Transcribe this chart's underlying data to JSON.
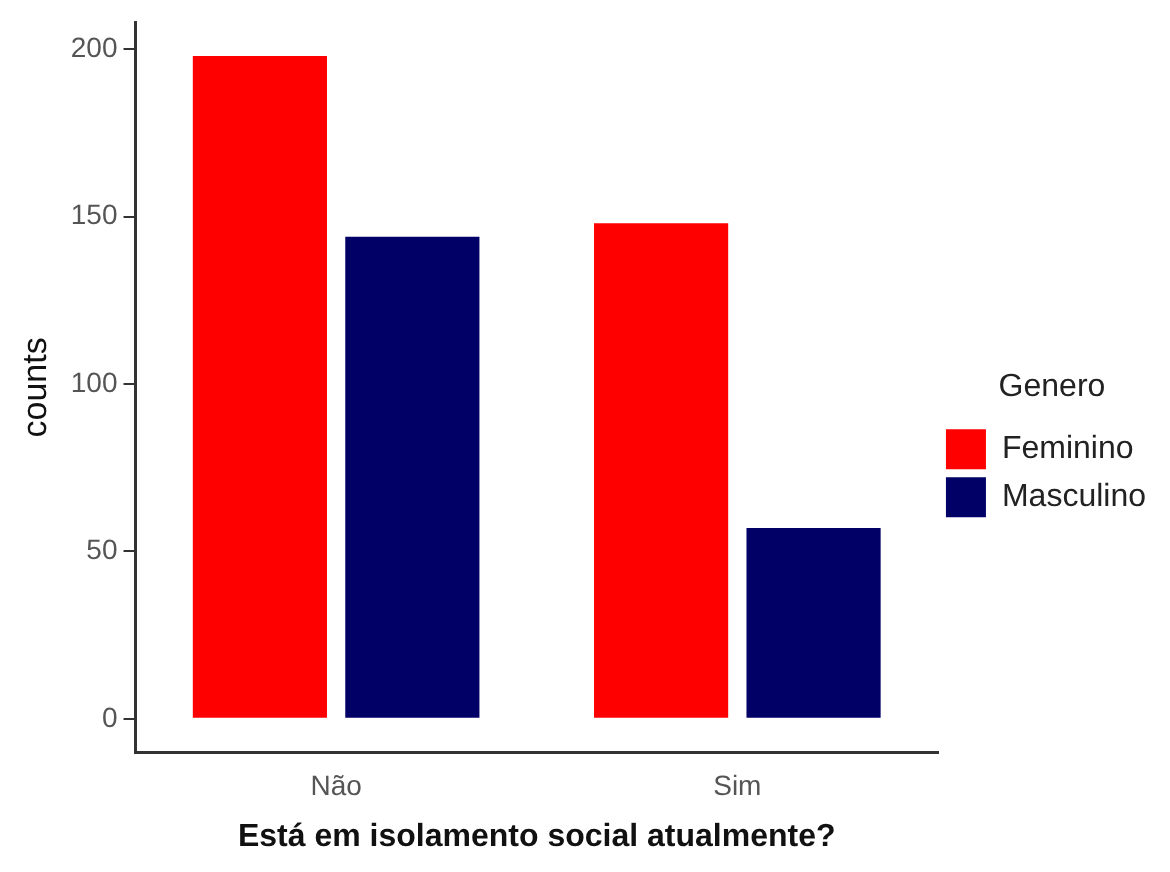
{
  "chart_data": {
    "type": "bar",
    "xlabel": "Está em isolamento social atualmente?",
    "ylabel": "counts",
    "legend_title": "Genero",
    "categories": [
      "Não",
      "Sim"
    ],
    "series": [
      {
        "name": "Feminino",
        "color": "#ff0000",
        "values": [
          198,
          148
        ]
      },
      {
        "name": "Masculino",
        "color": "#000066",
        "values": [
          144,
          57
        ]
      }
    ],
    "ylim": [
      -9.9,
      207.9
    ],
    "yticks": [
      0,
      50,
      100,
      150,
      200
    ],
    "grid": false,
    "legend": "right"
  }
}
